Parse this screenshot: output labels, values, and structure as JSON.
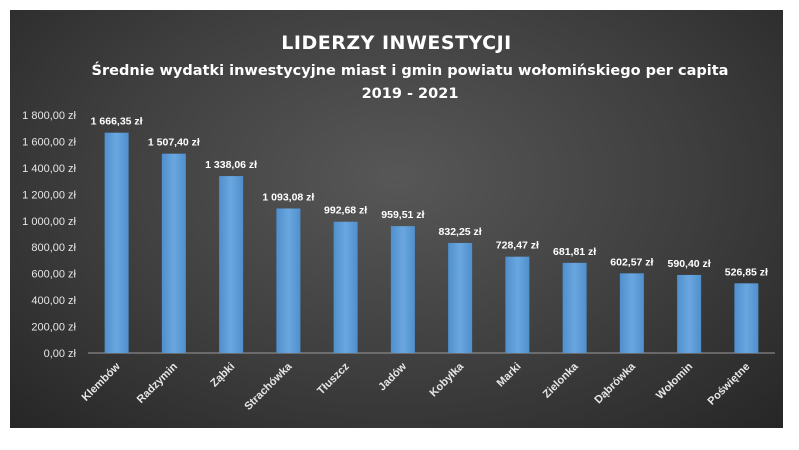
{
  "chart_data": {
    "type": "bar",
    "title": "LIDERZY INWESTYCJI",
    "subtitle": "Średnie wydatki inwestycyjne miast i gmin powiatu wołomińskiego per capita 2019 - 2021",
    "categories": [
      "Klembów",
      "Radzymin",
      "Ząbki",
      "Strachówka",
      "Tłuszcz",
      "Jadów",
      "Kobyłka",
      "Marki",
      "Zielonka",
      "Dąbrówka",
      "Wołomin",
      "Poświętne"
    ],
    "values": [
      1666.35,
      1507.4,
      1338.06,
      1093.08,
      992.68,
      959.51,
      832.25,
      728.47,
      681.81,
      602.57,
      590.4,
      526.85
    ],
    "data_labels": [
      "1 666,35 zł",
      "1 507,40 zł",
      "1 338,06 zł",
      "1 093,08 zł",
      "992,68 zł",
      "959,51 zł",
      "832,25 zł",
      "728,47 zł",
      "681,81 zł",
      "602,57 zł",
      "590,40 zł",
      "526,85 zł"
    ],
    "yticks": [
      "0,00 zł",
      "200,00 zł",
      "400,00 zł",
      "600,00 zł",
      "800,00 zł",
      "1 000,00 zł",
      "1 200,00 zł",
      "1 400,00 zł",
      "1 600,00 zł",
      "1 800,00 zł"
    ],
    "ylim": [
      0,
      1800
    ],
    "xlabel": "",
    "ylabel": "",
    "grid": false,
    "legend": "none",
    "bar_color": "#5b9bd5"
  }
}
